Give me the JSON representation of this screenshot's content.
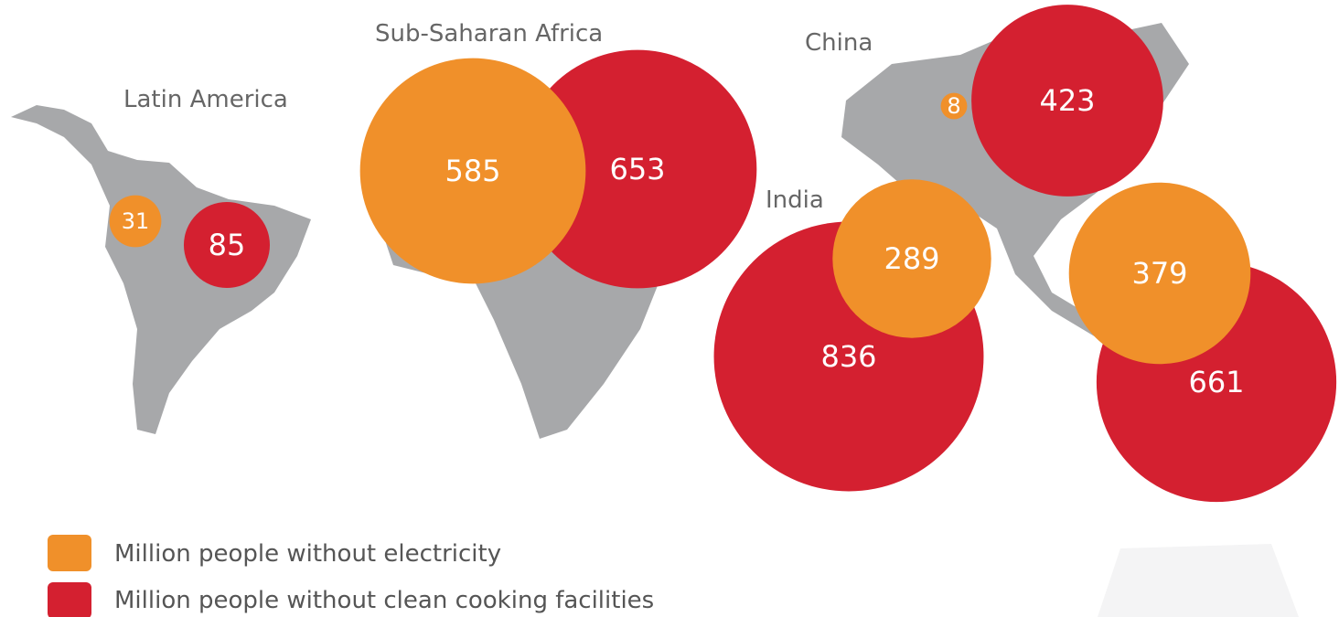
{
  "regions": [
    {
      "name": "Latin America",
      "electricity": 31,
      "cooking": 85
    },
    {
      "name": "Sub-Saharan Africa",
      "electricity": 585,
      "cooking": 653
    },
    {
      "name": "China",
      "electricity": 8,
      "cooking": 423
    },
    {
      "name": "India",
      "electricity": 289,
      "cooking": 836
    },
    {
      "name": null,
      "electricity": 379,
      "cooking": 661
    }
  ],
  "colors": {
    "electricity": "#f0902a",
    "cooking": "#d42030"
  },
  "legend": {
    "electricity": "Million people without electricity",
    "cooking": "Million people without clean cooking facilities"
  }
}
